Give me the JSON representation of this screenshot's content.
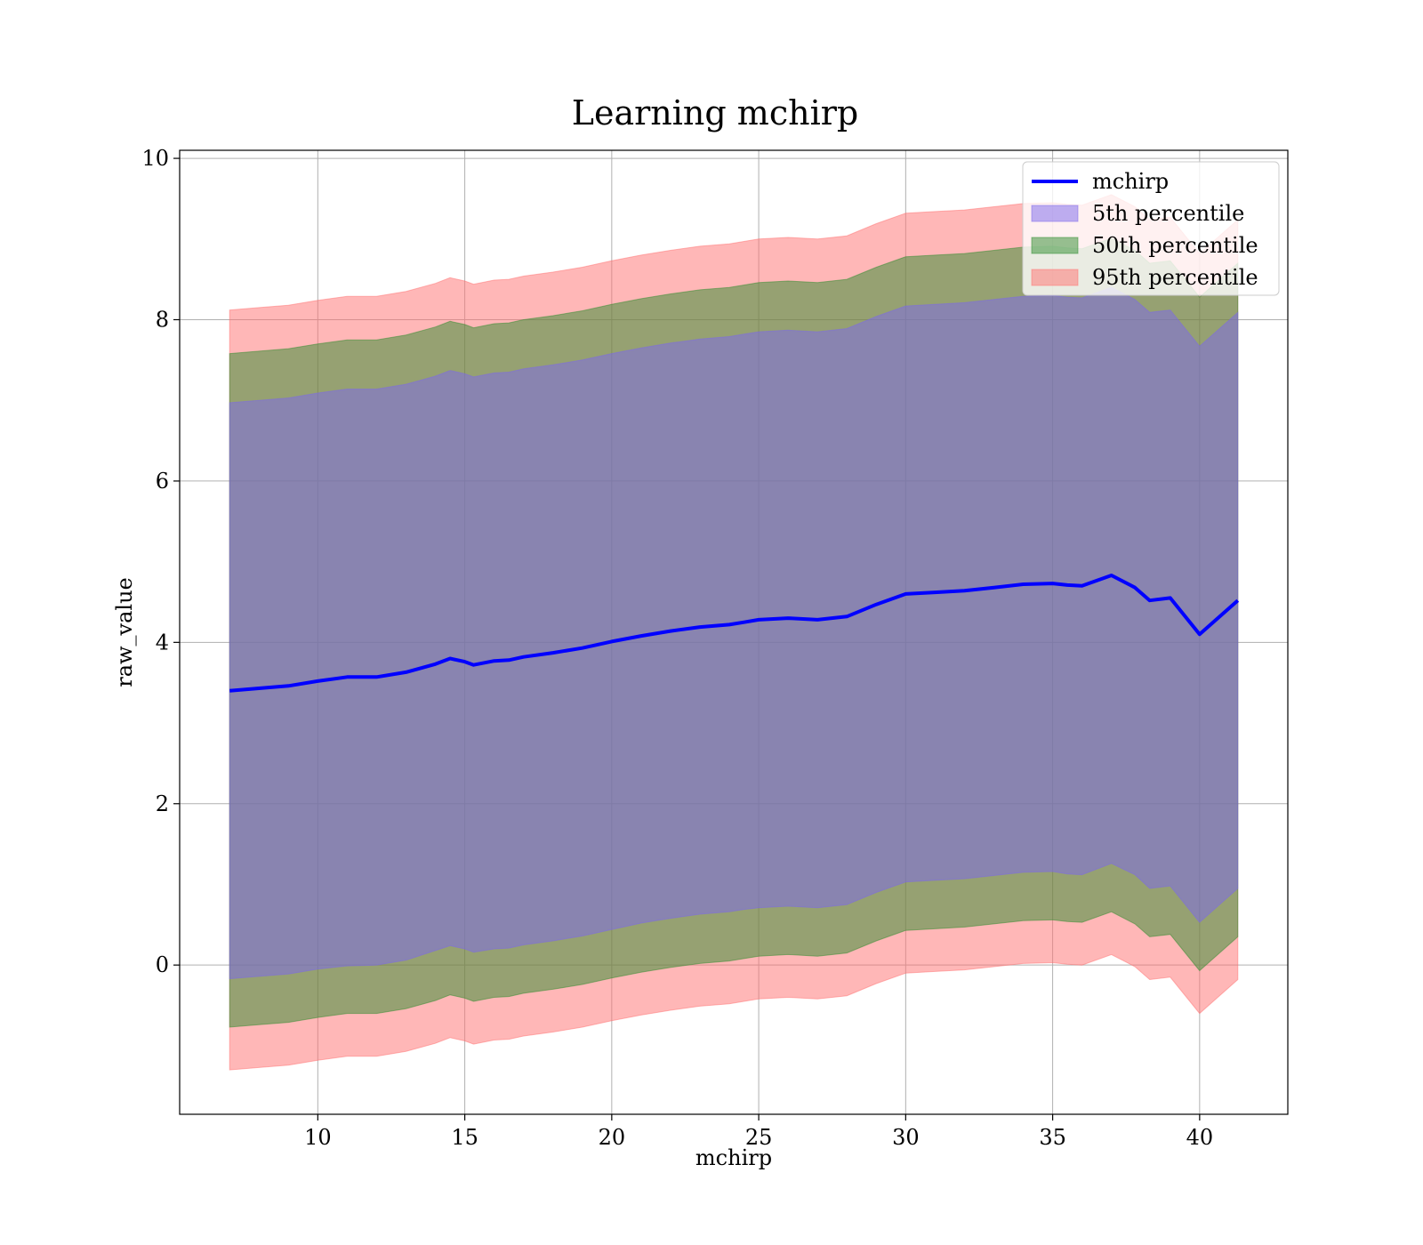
{
  "chart_data": {
    "type": "area",
    "title": "Learning mchirp",
    "xlabel": "mchirp",
    "ylabel": "raw_value",
    "xlim": [
      5.3,
      43.0
    ],
    "ylim": [
      -1.85,
      10.1
    ],
    "xticks": [
      10,
      15,
      20,
      25,
      30,
      35,
      40
    ],
    "yticks": [
      0,
      2,
      4,
      6,
      8,
      10
    ],
    "grid": true,
    "legend_position": "upper right",
    "x": [
      7.0,
      8.0,
      9.0,
      10.0,
      11.0,
      12.0,
      13.0,
      14.0,
      14.5,
      15.0,
      15.3,
      16.0,
      16.5,
      17.0,
      18.0,
      19.0,
      20.0,
      21.0,
      22.0,
      23.0,
      24.0,
      24.5,
      25.0,
      26.0,
      27.0,
      28.0,
      29.0,
      30.0,
      31.0,
      32.0,
      33.0,
      34.0,
      35.0,
      35.5,
      36.0,
      37.0,
      37.8,
      38.3,
      39.0,
      40.0,
      41.3
    ],
    "series": [
      {
        "name": "mchirp",
        "kind": "line",
        "color": "#0000ff",
        "values": [
          3.4,
          3.43,
          3.46,
          3.52,
          3.57,
          3.57,
          3.63,
          3.73,
          3.8,
          3.76,
          3.72,
          3.77,
          3.78,
          3.82,
          3.87,
          3.93,
          4.01,
          4.08,
          4.14,
          4.19,
          4.22,
          4.25,
          4.28,
          4.3,
          4.28,
          4.32,
          4.47,
          4.6,
          4.62,
          4.64,
          4.68,
          4.72,
          4.73,
          4.71,
          4.7,
          4.83,
          4.68,
          4.52,
          4.55,
          4.1,
          4.52
        ]
      },
      {
        "name": "5th percentile",
        "kind": "band",
        "color": "#7b68ee",
        "lower": [
          -0.17,
          -0.14,
          -0.11,
          -0.05,
          -0.01,
          0.0,
          0.06,
          0.18,
          0.24,
          0.2,
          0.16,
          0.2,
          0.21,
          0.25,
          0.3,
          0.36,
          0.44,
          0.52,
          0.58,
          0.63,
          0.66,
          0.69,
          0.71,
          0.73,
          0.71,
          0.75,
          0.9,
          1.03,
          1.05,
          1.07,
          1.11,
          1.15,
          1.16,
          1.13,
          1.12,
          1.26,
          1.12,
          0.95,
          0.98,
          0.53,
          0.95
        ],
        "upper": [
          6.97,
          7.0,
          7.03,
          7.09,
          7.14,
          7.14,
          7.2,
          7.3,
          7.37,
          7.33,
          7.29,
          7.34,
          7.35,
          7.39,
          7.44,
          7.5,
          7.58,
          7.65,
          7.71,
          7.76,
          7.79,
          7.82,
          7.85,
          7.87,
          7.85,
          7.89,
          8.04,
          8.17,
          8.19,
          8.21,
          8.25,
          8.29,
          8.3,
          8.28,
          8.27,
          8.4,
          8.25,
          8.09,
          8.12,
          7.67,
          8.09
        ]
      },
      {
        "name": "50th percentile",
        "kind": "band",
        "color": "#2e8b2e",
        "lower": [
          -0.77,
          -0.74,
          -0.71,
          -0.65,
          -0.6,
          -0.6,
          -0.54,
          -0.44,
          -0.37,
          -0.41,
          -0.45,
          -0.4,
          -0.39,
          -0.35,
          -0.3,
          -0.24,
          -0.16,
          -0.09,
          -0.03,
          0.02,
          0.05,
          0.08,
          0.11,
          0.13,
          0.11,
          0.15,
          0.3,
          0.43,
          0.45,
          0.47,
          0.51,
          0.55,
          0.56,
          0.54,
          0.53,
          0.66,
          0.51,
          0.35,
          0.38,
          -0.07,
          0.35
        ],
        "upper": [
          7.58,
          7.61,
          7.64,
          7.7,
          7.75,
          7.75,
          7.81,
          7.91,
          7.98,
          7.94,
          7.9,
          7.95,
          7.96,
          8.0,
          8.05,
          8.11,
          8.19,
          8.26,
          8.32,
          8.37,
          8.4,
          8.43,
          8.46,
          8.48,
          8.46,
          8.5,
          8.65,
          8.78,
          8.8,
          8.82,
          8.86,
          8.9,
          8.91,
          8.89,
          8.88,
          9.01,
          8.86,
          8.7,
          8.73,
          8.28,
          8.7
        ]
      },
      {
        "name": "95th percentile",
        "kind": "band",
        "color": "#ff6f6f",
        "lower": [
          -1.3,
          -1.27,
          -1.24,
          -1.18,
          -1.13,
          -1.13,
          -1.07,
          -0.97,
          -0.9,
          -0.94,
          -0.98,
          -0.93,
          -0.92,
          -0.88,
          -0.83,
          -0.77,
          -0.69,
          -0.62,
          -0.56,
          -0.51,
          -0.48,
          -0.45,
          -0.42,
          -0.4,
          -0.42,
          -0.38,
          -0.23,
          -0.1,
          -0.08,
          -0.06,
          -0.02,
          0.02,
          0.03,
          0.01,
          0.0,
          0.13,
          -0.02,
          -0.18,
          -0.15,
          -0.6,
          -0.18
        ],
        "upper": [
          8.12,
          8.15,
          8.18,
          8.24,
          8.29,
          8.29,
          8.35,
          8.45,
          8.52,
          8.48,
          8.44,
          8.49,
          8.5,
          8.54,
          8.59,
          8.65,
          8.73,
          8.8,
          8.86,
          8.91,
          8.94,
          8.97,
          9.0,
          9.02,
          9.0,
          9.04,
          9.19,
          9.32,
          9.34,
          9.36,
          9.4,
          9.44,
          9.45,
          9.43,
          9.42,
          9.55,
          9.4,
          9.24,
          9.27,
          8.82,
          9.24
        ]
      }
    ]
  }
}
